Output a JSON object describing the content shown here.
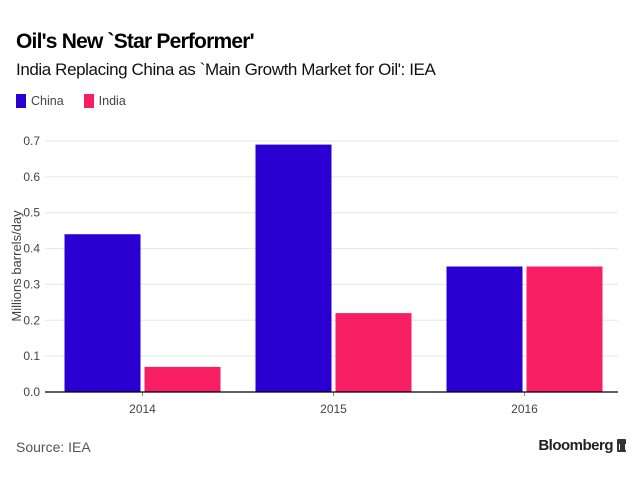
{
  "chart_data": {
    "type": "bar",
    "title": "Oil's New `Star Performer'",
    "subtitle": "India Replacing China as `Main Growth Market for Oil': IEA",
    "categories": [
      "2014",
      "2015",
      "2016"
    ],
    "series": [
      {
        "name": "China",
        "color": "#2a00d2",
        "values": [
          0.44,
          0.69,
          0.35
        ]
      },
      {
        "name": "India",
        "color": "#f71e63",
        "values": [
          0.07,
          0.22,
          0.35
        ]
      }
    ],
    "xlabel": "",
    "ylabel": "Millions barrels/day",
    "ylim": [
      0,
      0.7
    ],
    "yticks": [
      "0.0",
      "0.1",
      "0.2",
      "0.3",
      "0.4",
      "0.5",
      "0.6",
      "0.7"
    ],
    "grid": true,
    "legend_position": "top-left"
  },
  "footer": {
    "source": "Source: IEA",
    "brand": "Bloomberg"
  }
}
